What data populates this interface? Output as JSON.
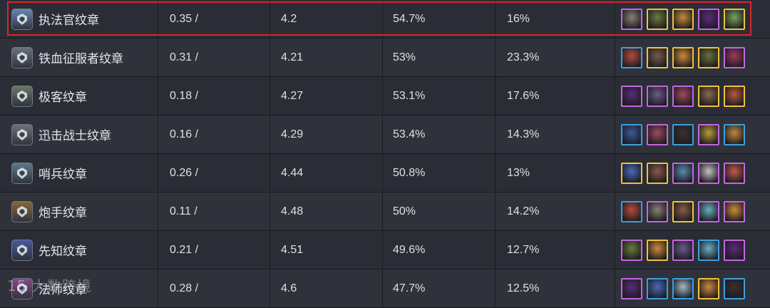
{
  "rows": [
    {
      "name": "执法官纹章",
      "pick": "0.35 /",
      "avg": "4.2",
      "top4": "54.7%",
      "win": "16%",
      "icon": "enforcer-emblem-icon",
      "emblem_color": "#6b87b8",
      "champs": [
        {
          "b": "#c567e0",
          "c": "#8a7f76"
        },
        {
          "b": "#f0c33a",
          "c": "#6b7c3a"
        },
        {
          "b": "#f0c33a",
          "c": "#c98a3a"
        },
        {
          "b": "#c567e0",
          "c": "#5b2a78"
        },
        {
          "b": "#f0c33a",
          "c": "#7aa35a"
        }
      ]
    },
    {
      "name": "铁血征服者纹章",
      "pick": "0.31 /",
      "avg": "4.21",
      "top4": "53%",
      "win": "23.3%",
      "icon": "conqueror-emblem-icon",
      "emblem_color": "#6d747e",
      "champs": [
        {
          "b": "#3aa0e0",
          "c": "#b84a3a"
        },
        {
          "b": "#f0c33a",
          "c": "#7a5a4a"
        },
        {
          "b": "#f0c33a",
          "c": "#d08a3a"
        },
        {
          "b": "#f0c33a",
          "c": "#6b6f3a"
        },
        {
          "b": "#c567e0",
          "c": "#a03a5a"
        }
      ]
    },
    {
      "name": "极客纹章",
      "pick": "0.18 /",
      "avg": "4.27",
      "top4": "53.1%",
      "win": "17.6%",
      "icon": "geek-emblem-icon",
      "emblem_color": "#6e7a66",
      "champs": [
        {
          "b": "#c567e0",
          "c": "#5b2a78"
        },
        {
          "b": "#c567e0",
          "c": "#6a5a8a"
        },
        {
          "b": "#c567e0",
          "c": "#a04a5a"
        },
        {
          "b": "#f0c33a",
          "c": "#8a6a4a"
        },
        {
          "b": "#f0c33a",
          "c": "#b8583a"
        }
      ]
    },
    {
      "name": "迅击战士纹章",
      "pick": "0.16 /",
      "avg": "4.29",
      "top4": "53.4%",
      "win": "14.3%",
      "icon": "striker-emblem-icon",
      "emblem_color": "#70757d",
      "champs": [
        {
          "b": "#3aa0e0",
          "c": "#3a5a9a"
        },
        {
          "b": "#c567e0",
          "c": "#a04a5a"
        },
        {
          "b": "#3aa0e0",
          "c": "#3a3030"
        },
        {
          "b": "#c567e0",
          "c": "#b89a3a"
        },
        {
          "b": "#3aa0e0",
          "c": "#c08a3a"
        }
      ]
    },
    {
      "name": "哨兵纹章",
      "pick": "0.26 /",
      "avg": "4.44",
      "top4": "50.8%",
      "win": "13%",
      "icon": "sentinel-emblem-icon",
      "emblem_color": "#5f7c8a",
      "champs": [
        {
          "b": "#f0c33a",
          "c": "#4a6ab8"
        },
        {
          "b": "#f0c33a",
          "c": "#8a5a4a"
        },
        {
          "b": "#c567e0",
          "c": "#5a8ab0"
        },
        {
          "b": "#c567e0",
          "c": "#c8c0c0"
        },
        {
          "b": "#c567e0",
          "c": "#c05a4a"
        }
      ]
    },
    {
      "name": "炮手纹章",
      "pick": "0.11 /",
      "avg": "4.48",
      "top4": "50%",
      "win": "14.2%",
      "icon": "cannoneer-emblem-icon",
      "emblem_color": "#8a6a3a",
      "champs": [
        {
          "b": "#3aa0e0",
          "c": "#b84a3a"
        },
        {
          "b": "#c567e0",
          "c": "#8a7f76"
        },
        {
          "b": "#f0c33a",
          "c": "#8a5a4a"
        },
        {
          "b": "#c567e0",
          "c": "#6ab0c0"
        },
        {
          "b": "#c567e0",
          "c": "#d08a3a"
        }
      ]
    },
    {
      "name": "先知纹章",
      "pick": "0.21 /",
      "avg": "4.51",
      "top4": "49.6%",
      "win": "12.7%",
      "icon": "prophet-emblem-icon",
      "emblem_color": "#4a5aa0",
      "champs": [
        {
          "b": "#c567e0",
          "c": "#6b7c3a"
        },
        {
          "b": "#f0c33a",
          "c": "#d08a3a"
        },
        {
          "b": "#c567e0",
          "c": "#6a5a8a"
        },
        {
          "b": "#3aa0e0",
          "c": "#6ab0c0"
        },
        {
          "b": "#c567e0",
          "c": "#5b2a78"
        }
      ]
    },
    {
      "name": "法师纹章",
      "pick": "0.28 /",
      "avg": "4.6",
      "top4": "47.7%",
      "win": "12.5%",
      "icon": "mage-emblem-icon",
      "emblem_color": "#8a4a8a",
      "champs": [
        {
          "b": "#c567e0",
          "c": "#5b2a78"
        },
        {
          "b": "#3aa0e0",
          "c": "#4a6ab8"
        },
        {
          "b": "#3aa0e0",
          "c": "#a0b8c8"
        },
        {
          "b": "#f0c33a",
          "c": "#d08a3a"
        },
        {
          "b": "#3aa0e0",
          "c": "#3a3030"
        }
      ]
    }
  ],
  "watermark": "15 大数跨境",
  "highlight_color": "#d8262b"
}
